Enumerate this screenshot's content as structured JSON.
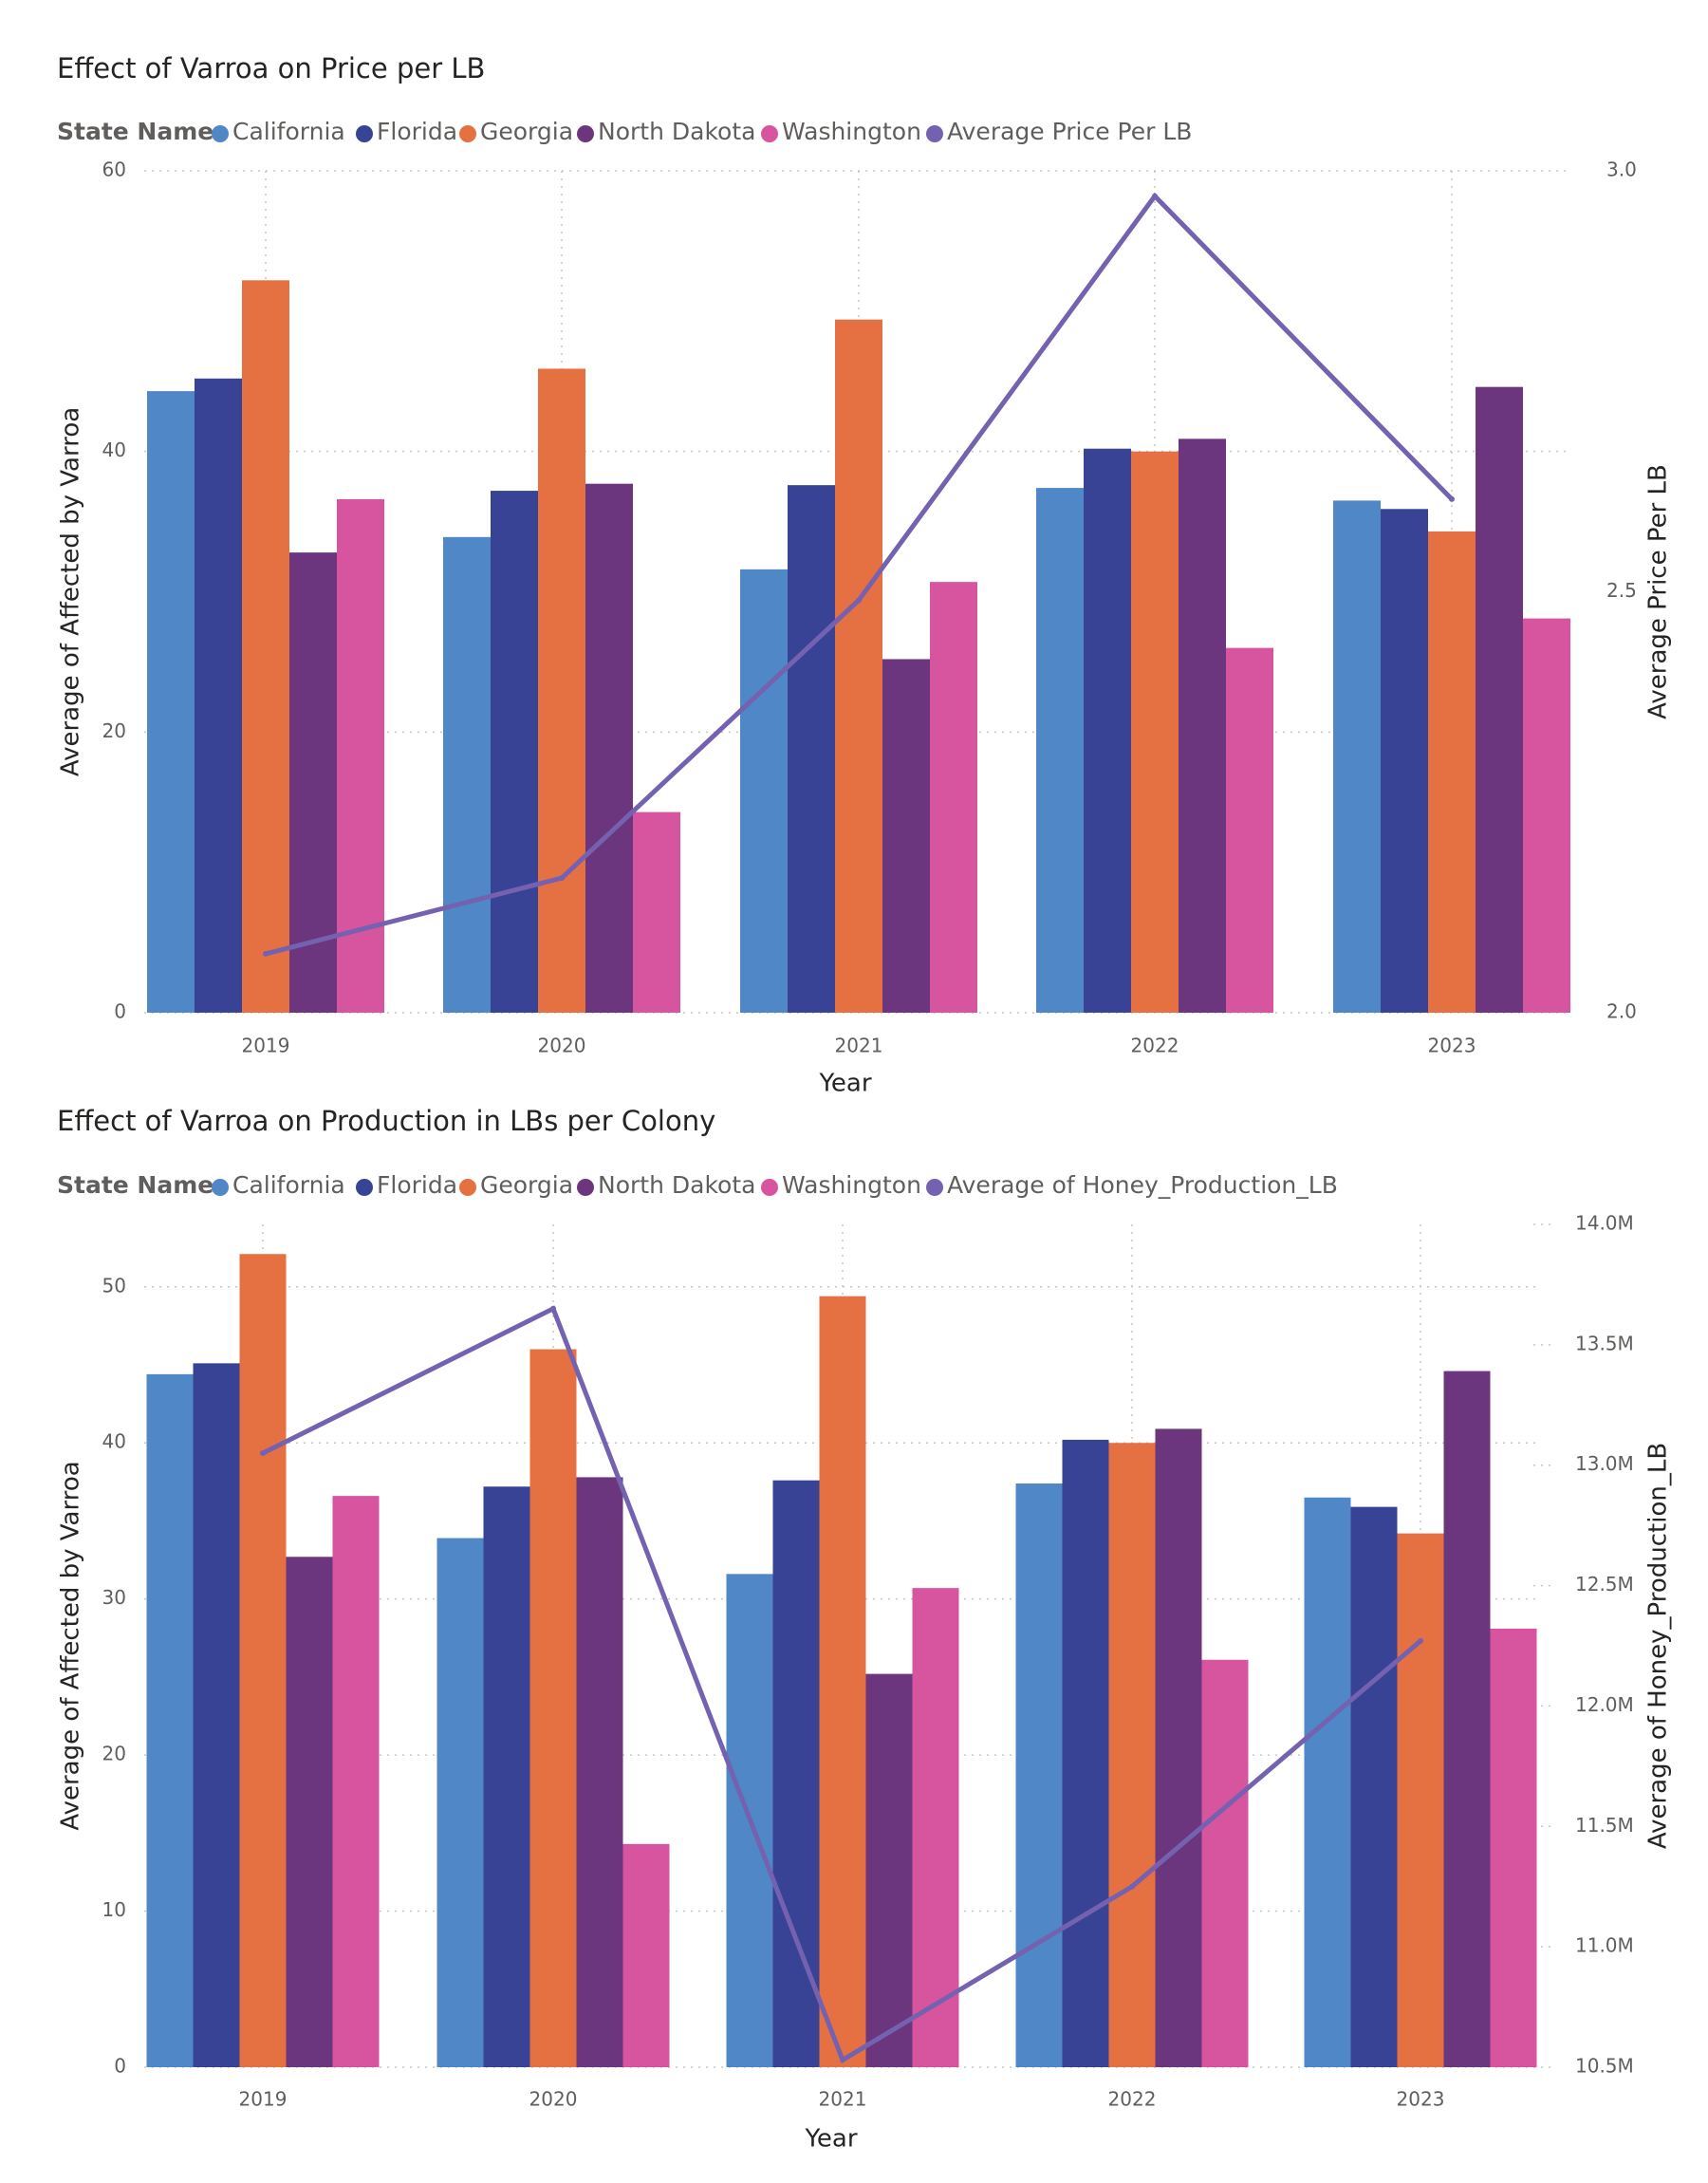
{
  "colors": {
    "California": "#4f87c7",
    "Florida": "#394396",
    "Georgia": "#e57142",
    "North Dakota": "#6c367e",
    "Washington": "#d7549f",
    "line": "#7462b0",
    "grid": "#c8c6c4"
  },
  "chart_data": [
    {
      "type": "bar",
      "title": "Effect of Varroa on Price per LB",
      "legend": {
        "title": "State Name",
        "items": [
          "California",
          "Florida",
          "Georgia",
          "North Dakota",
          "Washington",
          "Average Price Per LB"
        ],
        "placement": "top-left"
      },
      "categories": [
        "2019",
        "2020",
        "2021",
        "2022",
        "2023"
      ],
      "xlabel": "Year",
      "ylabel": "Average of Affected by Varroa",
      "y2label": "Average Price Per LB",
      "ylim": [
        0,
        60
      ],
      "yticks": [
        0,
        20,
        40,
        60
      ],
      "y2lim": [
        2.0,
        3.0
      ],
      "y2ticks": [
        "2.0",
        "2.5",
        "3.0"
      ],
      "grid": true,
      "series": [
        {
          "name": "California",
          "values": [
            44.3,
            33.9,
            31.6,
            37.4,
            36.5
          ]
        },
        {
          "name": "Florida",
          "values": [
            45.2,
            37.2,
            37.6,
            40.2,
            35.9
          ]
        },
        {
          "name": "Georgia",
          "values": [
            52.2,
            45.9,
            49.4,
            40.0,
            34.3
          ]
        },
        {
          "name": "North Dakota",
          "values": [
            32.8,
            37.7,
            25.2,
            40.9,
            44.6
          ]
        },
        {
          "name": "Washington",
          "values": [
            36.6,
            14.3,
            30.7,
            26.0,
            28.1
          ]
        }
      ],
      "line": {
        "name": "Average Price Per LB",
        "values": [
          2.07,
          2.16,
          2.49,
          2.97,
          2.61
        ]
      }
    },
    {
      "type": "bar",
      "title": "Effect of Varroa on Production in LBs per Colony",
      "legend": {
        "title": "State Name",
        "items": [
          "California",
          "Florida",
          "Georgia",
          "North Dakota",
          "Washington",
          "Average of Honey_Production_LB"
        ],
        "placement": "top-left"
      },
      "categories": [
        "2019",
        "2020",
        "2021",
        "2022",
        "2023"
      ],
      "xlabel": "Year",
      "ylabel": "Average of Affected by Varroa",
      "y2label": "Average of Honey_Production_LB",
      "ylim": [
        0,
        54
      ],
      "yticks": [
        0,
        10,
        20,
        30,
        40,
        50
      ],
      "y2lim": [
        10.5,
        14.0
      ],
      "y2ticks": [
        "10.5M",
        "11.0M",
        "11.5M",
        "12.0M",
        "12.5M",
        "13.0M",
        "13.5M",
        "14.0M"
      ],
      "grid": true,
      "series": [
        {
          "name": "California",
          "values": [
            44.4,
            33.9,
            31.6,
            37.4,
            36.5
          ]
        },
        {
          "name": "Florida",
          "values": [
            45.1,
            37.2,
            37.6,
            40.2,
            35.9
          ]
        },
        {
          "name": "Georgia",
          "values": [
            52.1,
            46.0,
            49.4,
            40.0,
            34.2
          ]
        },
        {
          "name": "North Dakota",
          "values": [
            32.7,
            37.8,
            25.2,
            40.9,
            44.6
          ]
        },
        {
          "name": "Washington",
          "values": [
            36.6,
            14.3,
            30.7,
            26.1,
            28.1
          ]
        }
      ],
      "line": {
        "name": "Average of Honey_Production_LB",
        "values": [
          13.05,
          13.65,
          10.53,
          11.25,
          12.27
        ]
      }
    }
  ]
}
